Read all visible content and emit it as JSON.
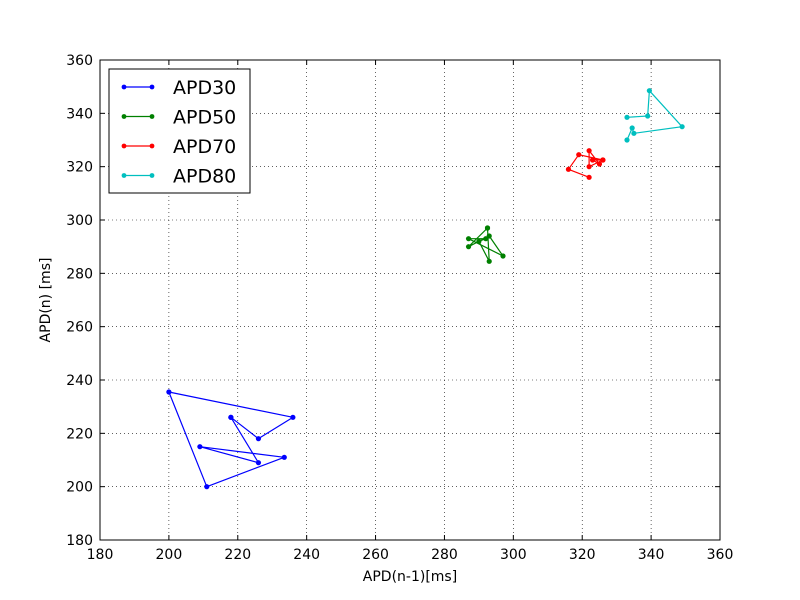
{
  "chart_data": {
    "type": "line",
    "title": "",
    "xlabel": "APD(n-1)[ms]",
    "ylabel": "APD(n) [ms]",
    "xlim": [
      180,
      360
    ],
    "ylim": [
      180,
      360
    ],
    "xticks": [
      180,
      200,
      220,
      240,
      260,
      280,
      300,
      320,
      340,
      360
    ],
    "yticks": [
      180,
      200,
      220,
      240,
      260,
      280,
      300,
      320,
      340,
      360
    ],
    "grid": true,
    "legend_position": "top-left",
    "series": [
      {
        "name": "APD30",
        "color": "#0000ff",
        "points": [
          [
            218,
            226
          ],
          [
            226,
            218
          ],
          [
            236,
            226
          ],
          [
            200,
            235.5
          ],
          [
            211,
            200
          ],
          [
            233.5,
            211
          ],
          [
            209,
            215
          ],
          [
            226,
            209
          ],
          [
            218,
            226
          ]
        ]
      },
      {
        "name": "APD50",
        "color": "#008000",
        "points": [
          [
            292.5,
            297
          ],
          [
            287,
            290
          ],
          [
            293,
            294
          ],
          [
            297,
            286.5
          ],
          [
            287,
            293
          ],
          [
            292,
            293
          ],
          [
            290,
            292
          ],
          [
            293,
            284.5
          ],
          [
            292.5,
            297
          ]
        ]
      },
      {
        "name": "APD70",
        "color": "#ff0000",
        "points": [
          [
            322,
            316
          ],
          [
            316,
            319
          ],
          [
            319,
            324.5
          ],
          [
            326,
            322.5
          ],
          [
            322,
            320
          ],
          [
            322,
            326
          ],
          [
            325,
            321
          ],
          [
            323,
            322.5
          ],
          [
            326,
            322.5
          ]
        ]
      },
      {
        "name": "APD80",
        "color": "#00bfbf",
        "points": [
          [
            333,
            338.5
          ],
          [
            339,
            339
          ],
          [
            339.5,
            348.5
          ],
          [
            349,
            335
          ],
          [
            335,
            332.5
          ],
          [
            334.5,
            334.5
          ],
          [
            333,
            330
          ]
        ]
      }
    ]
  }
}
